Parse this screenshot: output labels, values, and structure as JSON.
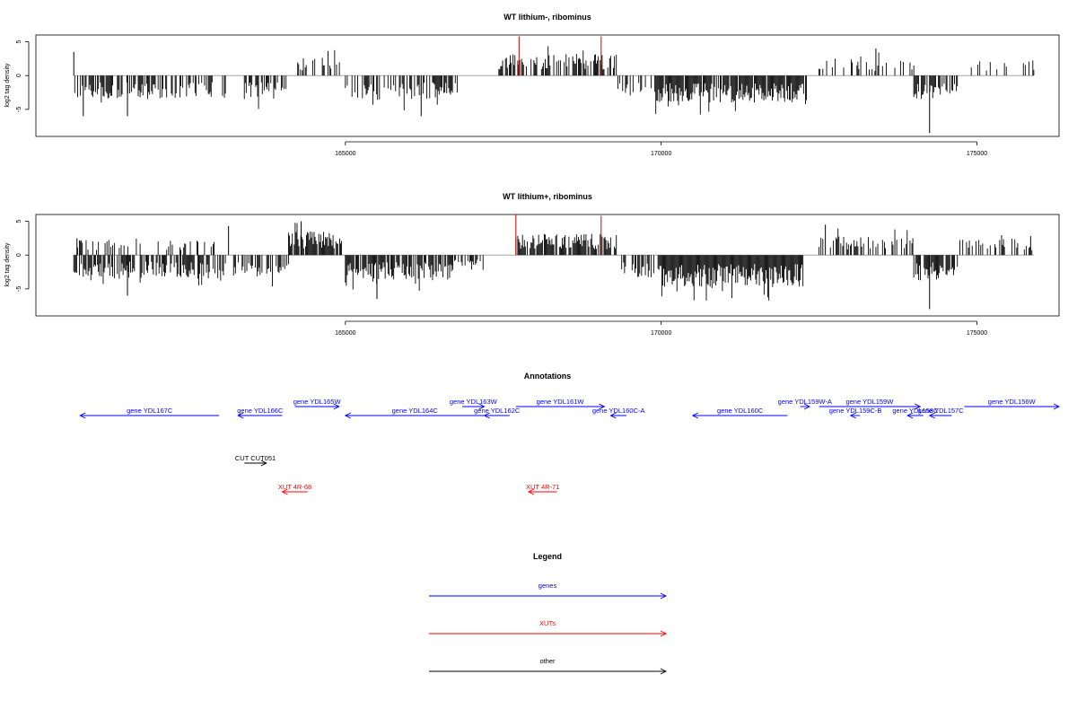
{
  "chart_data": [
    {
      "type": "bar",
      "title": "WT lithium-, ribominus",
      "xlabel": "",
      "ylabel": "log2 tag density",
      "xlim": [
        160100,
        176300
      ],
      "ylim": [
        -9,
        6
      ],
      "yticks": [
        -5,
        0,
        5
      ],
      "xticks": [
        165000,
        170000,
        175000
      ],
      "baseline_range": [
        160700,
        175900
      ],
      "segments": [
        {
          "start": 160700,
          "end": 163100,
          "sign": -1,
          "density": 0.55,
          "mag": 2.8
        },
        {
          "start": 163400,
          "end": 164100,
          "sign": -1,
          "density": 0.55,
          "mag": 2.8
        },
        {
          "start": 164200,
          "end": 164950,
          "sign": 1,
          "density": 0.45,
          "mag": 2.2
        },
        {
          "start": 165000,
          "end": 166800,
          "sign": -1,
          "density": 0.6,
          "mag": 2.9
        },
        {
          "start": 167400,
          "end": 169300,
          "sign": 1,
          "density": 0.6,
          "mag": 2.6
        },
        {
          "start": 169300,
          "end": 169900,
          "sign": -1,
          "density": 0.35,
          "mag": 2.4
        },
        {
          "start": 169900,
          "end": 172300,
          "sign": -1,
          "density": 0.9,
          "mag": 3.2
        },
        {
          "start": 172500,
          "end": 174000,
          "sign": 1,
          "density": 0.25,
          "mag": 2.0
        },
        {
          "start": 174000,
          "end": 174700,
          "sign": -1,
          "density": 0.7,
          "mag": 2.8
        },
        {
          "start": 174700,
          "end": 175900,
          "sign": 1,
          "density": 0.15,
          "mag": 2.0
        }
      ],
      "spikes": [
        {
          "x": 160700,
          "y": 3.5,
          "color": "#000000"
        },
        {
          "x": 160850,
          "y": -6.0,
          "color": "#000000"
        },
        {
          "x": 161550,
          "y": -6.0,
          "color": "#000000"
        },
        {
          "x": 166200,
          "y": -6.0,
          "color": "#000000"
        },
        {
          "x": 167750,
          "y": 5.8,
          "color": "#cc0000"
        },
        {
          "x": 169050,
          "y": 5.8,
          "color": "#cc0000"
        },
        {
          "x": 173400,
          "y": 4.0,
          "color": "#000000"
        },
        {
          "x": 174250,
          "y": -8.5,
          "color": "#000000"
        }
      ]
    },
    {
      "type": "bar",
      "title": "WT lithium+, ribominus",
      "xlabel": "",
      "ylabel": "log2 tag density",
      "xlim": [
        160100,
        176300
      ],
      "ylim": [
        -9,
        6
      ],
      "yticks": [
        -5,
        0,
        5
      ],
      "xticks": [
        165000,
        170000,
        175000
      ],
      "baseline_range": [
        160700,
        175900
      ],
      "segments": [
        {
          "start": 160700,
          "end": 163100,
          "sign": -1,
          "density": 0.7,
          "mag": 2.8
        },
        {
          "start": 160700,
          "end": 163100,
          "sign": 1,
          "density": 0.25,
          "mag": 1.8
        },
        {
          "start": 163200,
          "end": 164100,
          "sign": -1,
          "density": 0.55,
          "mag": 2.6
        },
        {
          "start": 164100,
          "end": 164950,
          "sign": 1,
          "density": 0.95,
          "mag": 2.8
        },
        {
          "start": 165000,
          "end": 166700,
          "sign": -1,
          "density": 0.85,
          "mag": 3.0
        },
        {
          "start": 166700,
          "end": 167200,
          "sign": -1,
          "density": 0.4,
          "mag": 1.8
        },
        {
          "start": 167700,
          "end": 169300,
          "sign": 1,
          "density": 0.85,
          "mag": 2.5
        },
        {
          "start": 169300,
          "end": 169900,
          "sign": -1,
          "density": 0.5,
          "mag": 2.8
        },
        {
          "start": 169950,
          "end": 172250,
          "sign": -1,
          "density": 1.0,
          "mag": 3.8
        },
        {
          "start": 172500,
          "end": 174000,
          "sign": 1,
          "density": 0.4,
          "mag": 2.2
        },
        {
          "start": 174000,
          "end": 174700,
          "sign": -1,
          "density": 0.75,
          "mag": 3.0
        },
        {
          "start": 174700,
          "end": 175900,
          "sign": 1,
          "density": 0.3,
          "mag": 1.9
        }
      ],
      "spikes": [
        {
          "x": 160750,
          "y": 2.5,
          "color": "#000000"
        },
        {
          "x": 161550,
          "y": -6.0,
          "color": "#000000"
        },
        {
          "x": 163150,
          "y": 4.3,
          "color": "#000000"
        },
        {
          "x": 164300,
          "y": 5.0,
          "color": "#000000"
        },
        {
          "x": 165500,
          "y": -6.5,
          "color": "#000000"
        },
        {
          "x": 167700,
          "y": 6.0,
          "color": "#cc0000"
        },
        {
          "x": 169050,
          "y": 5.8,
          "color": "#cc0000"
        },
        {
          "x": 172600,
          "y": 4.5,
          "color": "#000000"
        },
        {
          "x": 174250,
          "y": -8.0,
          "color": "#000000"
        },
        {
          "x": 175850,
          "y": 2.8,
          "color": "#000000"
        }
      ]
    }
  ],
  "annotations": {
    "title": "Annotations",
    "items": [
      {
        "label": "gene YDL167C",
        "start": 160800,
        "end": 163000,
        "strand": "-",
        "type": "gene",
        "row": 2
      },
      {
        "label": "gene YDL166C",
        "start": 163300,
        "end": 164000,
        "strand": "-",
        "type": "gene",
        "row": 2
      },
      {
        "label": "gene YDL165W",
        "start": 164200,
        "end": 164900,
        "strand": "+",
        "type": "gene",
        "row": 1
      },
      {
        "label": "gene YDL164C",
        "start": 165000,
        "end": 167200,
        "strand": "-",
        "type": "gene",
        "row": 2
      },
      {
        "label": "gene YDL163W",
        "start": 166850,
        "end": 167200,
        "strand": "+",
        "type": "gene",
        "row": 1
      },
      {
        "label": "gene YDL162C",
        "start": 167200,
        "end": 167600,
        "strand": "-",
        "type": "gene",
        "row": 2
      },
      {
        "label": "gene YDL161W",
        "start": 167700,
        "end": 169100,
        "strand": "+",
        "type": "gene",
        "row": 1
      },
      {
        "label": "gene YDL160C-A",
        "start": 169200,
        "end": 169450,
        "strand": "-",
        "type": "gene",
        "row": 2
      },
      {
        "label": "gene YDL160C",
        "start": 170500,
        "end": 172000,
        "strand": "-",
        "type": "gene",
        "row": 2
      },
      {
        "label": "gene YDL159W-A",
        "start": 172200,
        "end": 172350,
        "strand": "+",
        "type": "gene",
        "row": 1
      },
      {
        "label": "gene YDL159W",
        "start": 172500,
        "end": 174100,
        "strand": "+",
        "type": "gene",
        "row": 1
      },
      {
        "label": "gene YDL159C-B",
        "start": 173000,
        "end": 173150,
        "strand": "-",
        "type": "gene",
        "row": 2
      },
      {
        "label": "gene YDL158C",
        "start": 173900,
        "end": 174150,
        "strand": "-",
        "type": "gene",
        "row": 2
      },
      {
        "label": "gene YDL157C",
        "start": 174250,
        "end": 174600,
        "strand": "-",
        "type": "gene",
        "row": 2
      },
      {
        "label": "gene YDL156W",
        "start": 174800,
        "end": 176400,
        "strand": "+",
        "type": "gene",
        "row": 1
      },
      {
        "label": "CUT CUT051",
        "start": 163400,
        "end": 163750,
        "strand": "+",
        "type": "other",
        "row": 3
      },
      {
        "label": "XUT 4R-68",
        "start": 164000,
        "end": 164400,
        "strand": "-",
        "type": "xut",
        "row": 4
      },
      {
        "label": "XUT 4R-71",
        "start": 167900,
        "end": 168350,
        "strand": "-",
        "type": "xut",
        "row": 4
      }
    ]
  },
  "legend": {
    "title": "Legend",
    "items": [
      {
        "label": "genes",
        "color": "#0000ff"
      },
      {
        "label": "XUTs",
        "color": "#ff0000"
      },
      {
        "label": "other",
        "color": "#000000"
      }
    ]
  },
  "colors": {
    "gene": "#0000ff",
    "xut": "#ff0000",
    "other": "#000000"
  }
}
